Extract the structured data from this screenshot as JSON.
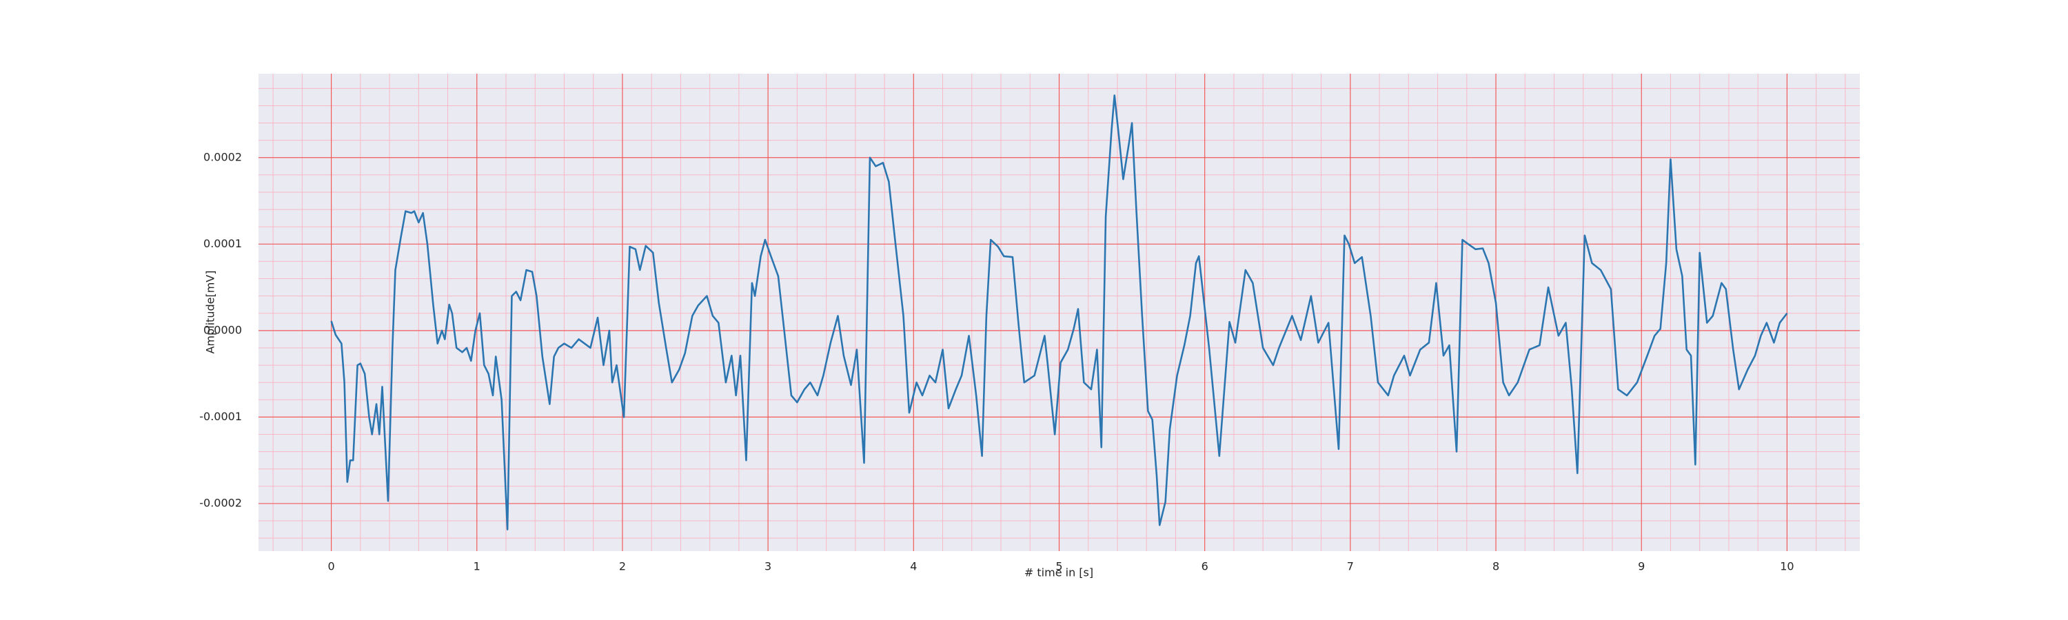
{
  "chart_data": {
    "type": "line",
    "xlabel": "# time in [s]",
    "ylabel": "Amplitude[mV]",
    "color": "#2b76b0",
    "background": "#eaeaf2",
    "major_grid_color": "#f25a5a",
    "minor_grid_color": "#f7b8c4",
    "grid": true,
    "xlim": [
      -0.5,
      10.5
    ],
    "ylim": [
      -0.000255,
      0.000297
    ],
    "xticks": [
      0,
      1,
      2,
      3,
      4,
      5,
      6,
      7,
      8,
      9,
      10
    ],
    "yticks": [
      {
        "value": -0.0002,
        "label": "-0.0002"
      },
      {
        "value": -0.0001,
        "label": "-0.0001"
      },
      {
        "value": 0,
        "label": "0.0000"
      },
      {
        "value": 0.0001,
        "label": "0.0001"
      },
      {
        "value": 0.0002,
        "label": "0.0002"
      }
    ],
    "minor_xticks": [
      -0.4,
      -0.2,
      0.2,
      0.4,
      0.6,
      0.8,
      1.2,
      1.4,
      1.6,
      1.8,
      2.2,
      2.4,
      2.6,
      2.8,
      3.2,
      3.4,
      3.6,
      3.8,
      4.2,
      4.4,
      4.6,
      4.8,
      5.2,
      5.4,
      5.6,
      5.8,
      6.2,
      6.4,
      6.6,
      6.8,
      7.2,
      7.4,
      7.6,
      7.8,
      8.2,
      8.4,
      8.6,
      8.8,
      9.2,
      9.4,
      9.6,
      9.8,
      10.2,
      10.4
    ],
    "minor_yticks": [
      -0.00024,
      -0.00022,
      -0.00018,
      -0.00016,
      -0.00014,
      -0.00012,
      -8e-05,
      -6e-05,
      -4e-05,
      -2e-05,
      2e-05,
      4e-05,
      6e-05,
      8e-05,
      0.00012,
      0.00014,
      0.00016,
      0.00018,
      0.00022,
      0.00024,
      0.00026,
      0.00028
    ],
    "x": [
      0.0,
      0.03,
      0.07,
      0.09,
      0.11,
      0.13,
      0.15,
      0.18,
      0.2,
      0.23,
      0.26,
      0.28,
      0.31,
      0.33,
      0.35,
      0.39,
      0.42,
      0.44,
      0.48,
      0.51,
      0.55,
      0.57,
      0.6,
      0.63,
      0.66,
      0.7,
      0.73,
      0.76,
      0.78,
      0.81,
      0.83,
      0.86,
      0.9,
      0.93,
      0.96,
      0.99,
      1.02,
      1.05,
      1.08,
      1.11,
      1.13,
      1.17,
      1.21,
      1.24,
      1.27,
      1.3,
      1.34,
      1.38,
      1.41,
      1.45,
      1.5,
      1.53,
      1.56,
      1.6,
      1.65,
      1.7,
      1.78,
      1.83,
      1.87,
      1.91,
      1.93,
      1.96,
      2.01,
      2.05,
      2.09,
      2.12,
      2.16,
      2.21,
      2.25,
      2.3,
      2.34,
      2.39,
      2.43,
      2.48,
      2.52,
      2.58,
      2.62,
      2.66,
      2.71,
      2.75,
      2.78,
      2.81,
      2.85,
      2.89,
      2.91,
      2.95,
      2.98,
      3.02,
      3.07,
      3.11,
      3.16,
      3.2,
      3.25,
      3.29,
      3.34,
      3.38,
      3.43,
      3.48,
      3.52,
      3.57,
      3.61,
      3.66,
      3.7,
      3.74,
      3.79,
      3.83,
      3.87,
      3.93,
      3.97,
      4.02,
      4.06,
      4.11,
      4.15,
      4.2,
      4.24,
      4.29,
      4.33,
      4.38,
      4.43,
      4.47,
      4.5,
      4.53,
      4.58,
      4.62,
      4.68,
      4.72,
      4.76,
      4.83,
      4.9,
      4.92,
      4.97,
      5.01,
      5.06,
      5.1,
      5.13,
      5.17,
      5.22,
      5.26,
      5.29,
      5.32,
      5.36,
      5.38,
      5.41,
      5.44,
      5.48,
      5.5,
      5.53,
      5.57,
      5.61,
      5.64,
      5.67,
      5.69,
      5.73,
      5.76,
      5.81,
      5.86,
      5.9,
      5.94,
      5.96,
      6.03,
      6.1,
      6.17,
      6.21,
      6.28,
      6.33,
      6.4,
      6.47,
      6.51,
      6.6,
      6.66,
      6.73,
      6.78,
      6.85,
      6.92,
      6.96,
      6.99,
      7.03,
      7.08,
      7.14,
      7.19,
      7.26,
      7.3,
      7.37,
      7.41,
      7.48,
      7.54,
      7.59,
      7.64,
      7.68,
      7.73,
      7.77,
      7.81,
      7.86,
      7.91,
      7.95,
      8.0,
      8.05,
      8.09,
      8.15,
      8.23,
      8.3,
      8.36,
      8.43,
      8.48,
      8.52,
      8.56,
      8.61,
      8.66,
      8.72,
      8.79,
      8.84,
      8.9,
      8.97,
      9.04,
      9.09,
      9.13,
      9.17,
      9.2,
      9.24,
      9.28,
      9.31,
      9.34,
      9.37,
      9.4,
      9.45,
      9.49,
      9.55,
      9.58,
      9.63,
      9.67,
      9.73,
      9.78,
      9.82,
      9.86,
      9.91,
      9.95,
      10.0
    ],
    "values": [
      1.1e-05,
      -5e-06,
      -1.5e-05,
      -6e-05,
      -0.000175,
      -0.00015,
      -0.00015,
      -4e-05,
      -3.8e-05,
      -5e-05,
      -0.0001,
      -0.00012,
      -8.5e-05,
      -0.00012,
      -6.5e-05,
      -0.000197,
      -2e-05,
      7e-05,
      0.00011,
      0.000138,
      0.000136,
      0.000138,
      0.000125,
      0.000136,
      0.0001,
      3e-05,
      -1.5e-05,
      0.0,
      -1e-05,
      3e-05,
      2e-05,
      -2e-05,
      -2.5e-05,
      -2e-05,
      -3.5e-05,
      0.0,
      2e-05,
      -4e-05,
      -5e-05,
      -7.5e-05,
      -3e-05,
      -8e-05,
      -0.00023,
      4e-05,
      4.5e-05,
      3.5e-05,
      7e-05,
      6.8e-05,
      4e-05,
      -3e-05,
      -8.5e-05,
      -3e-05,
      -2e-05,
      -1.5e-05,
      -2e-05,
      -1e-05,
      -2e-05,
      1.5e-05,
      -4e-05,
      0.0,
      -6e-05,
      -4e-05,
      -0.0001,
      9.7e-05,
      9.4e-05,
      7e-05,
      9.8e-05,
      9e-05,
      3.2e-05,
      -2e-05,
      -6e-05,
      -4.5e-05,
      -2.6e-05,
      1.7e-05,
      2.9e-05,
      4e-05,
      1.7e-05,
      9e-06,
      -6e-05,
      -2.9e-05,
      -7.5e-05,
      -2.9e-05,
      -0.00015,
      5.5e-05,
      4e-05,
      8.6e-05,
      0.000105,
      8.6e-05,
      6.3e-05,
      2e-06,
      -7.5e-05,
      -8.3e-05,
      -6.8e-05,
      -6e-05,
      -7.5e-05,
      -5.2e-05,
      -1.4e-05,
      1.7e-05,
      -2.9e-05,
      -6.3e-05,
      -2.2e-05,
      -0.000153,
      0.0002,
      0.00019,
      0.000194,
      0.000172,
      0.000109,
      1.7e-05,
      -9.5e-05,
      -6e-05,
      -7.5e-05,
      -5.2e-05,
      -6e-05,
      -2.2e-05,
      -9e-05,
      -6.8e-05,
      -5.2e-05,
      -6e-06,
      -7.5e-05,
      -0.000145,
      1.7e-05,
      0.000105,
      9.7e-05,
      8.6e-05,
      8.5e-05,
      9e-06,
      -6e-05,
      -5.2e-05,
      -6e-06,
      -3.7e-05,
      -0.00012,
      -3.7e-05,
      -2.2e-05,
      2e-06,
      2.5e-05,
      -6e-05,
      -6.8e-05,
      -2.2e-05,
      -0.000135,
      0.000132,
      0.000232,
      0.000272,
      0.000225,
      0.000175,
      0.000217,
      0.00024,
      0.00014,
      1.7e-05,
      -9.3e-05,
      -0.000103,
      -0.000168,
      -0.000225,
      -0.000198,
      -0.000114,
      -5.2e-05,
      -1.7e-05,
      1.7e-05,
      7.8e-05,
      8.6e-05,
      -2e-05,
      -0.000145,
      1e-05,
      -1.4e-05,
      7e-05,
      5.5e-05,
      -2e-05,
      -4e-05,
      -2e-05,
      1.7e-05,
      -1.1e-05,
      4e-05,
      -1.4e-05,
      9e-06,
      -0.000137,
      0.00011,
      0.0001,
      7.8e-05,
      8.5e-05,
      1.7e-05,
      -6e-05,
      -7.5e-05,
      -5.2e-05,
      -2.9e-05,
      -5.2e-05,
      -2.2e-05,
      -1.4e-05,
      5.5e-05,
      -2.9e-05,
      -1.7e-05,
      -0.00014,
      0.000105,
      0.0001,
      9.4e-05,
      9.5e-05,
      7.8e-05,
      3.2e-05,
      -6e-05,
      -7.5e-05,
      -6e-05,
      -2.2e-05,
      -1.7e-05,
      5e-05,
      -6e-06,
      9e-06,
      -6.5e-05,
      -0.000165,
      0.00011,
      7.8e-05,
      7e-05,
      4.8e-05,
      -6.8e-05,
      -7.5e-05,
      -6e-05,
      -2.9e-05,
      -6e-06,
      2e-06,
      7.8e-05,
      0.000198,
      9.4e-05,
      6.3e-05,
      -2.2e-05,
      -2.9e-05,
      -0.000155,
      9e-05,
      9e-06,
      1.7e-05,
      5.5e-05,
      4.8e-05,
      -2.2e-05,
      -6.8e-05,
      -4.5e-05,
      -2.9e-05,
      -6e-06,
      9e-06,
      -1.4e-05,
      9e-06,
      2e-05
    ]
  }
}
